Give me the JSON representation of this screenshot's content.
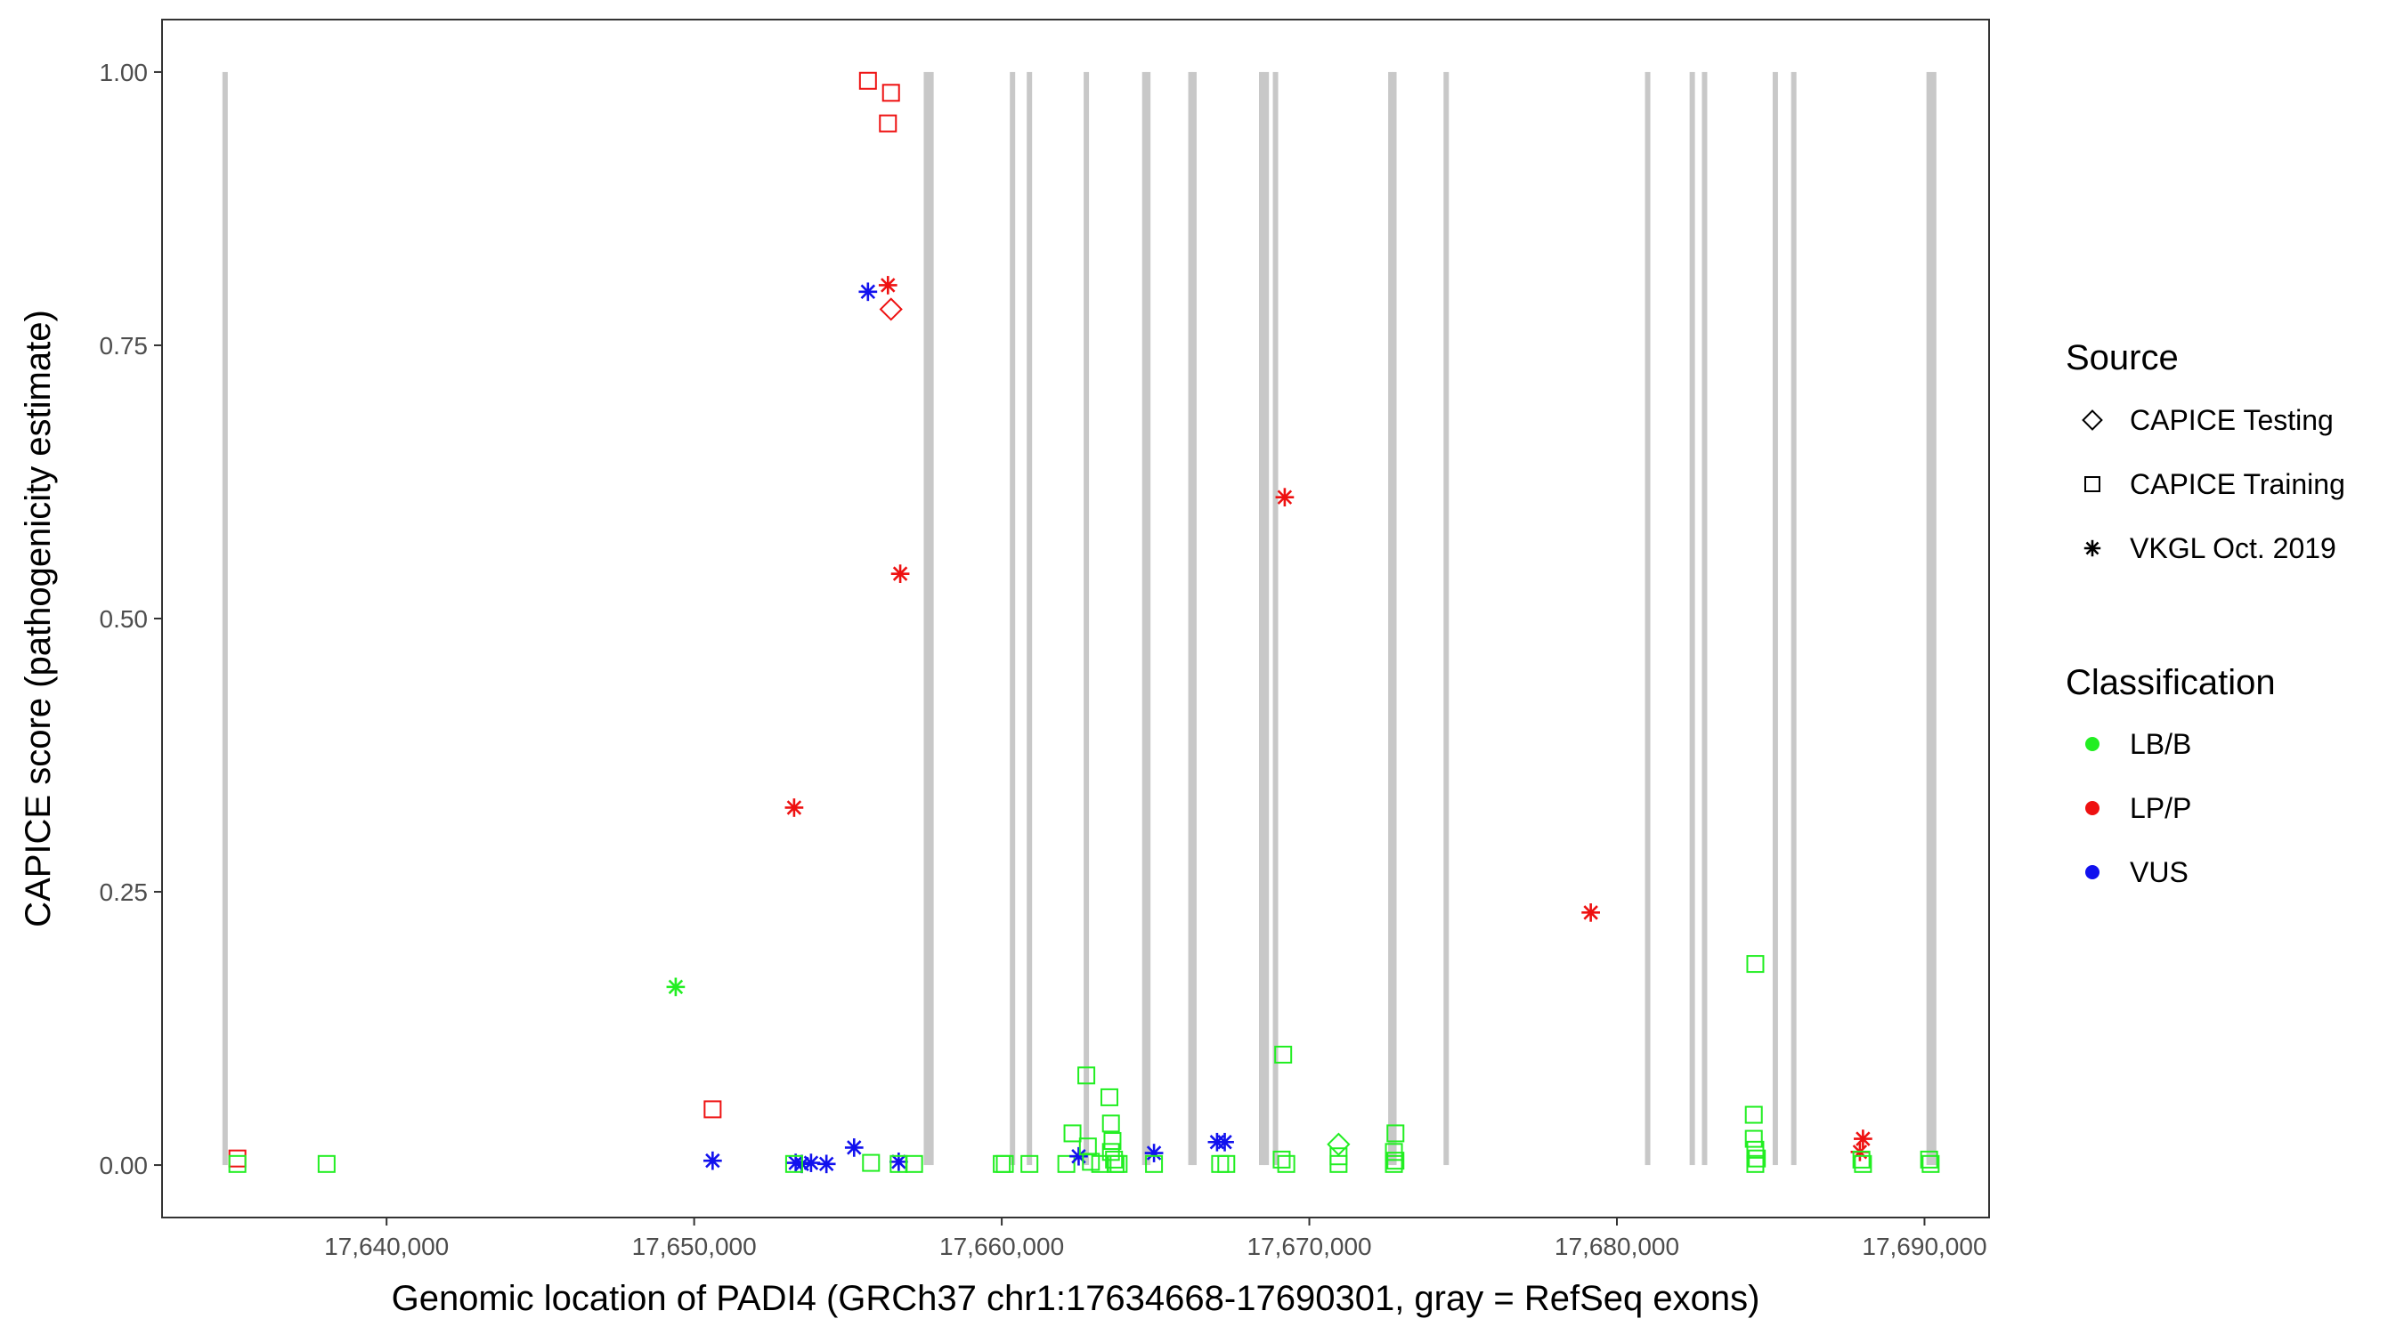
{
  "colors": {
    "exon": "#c8c8c8",
    "LB/B": "#22ee22",
    "LP/P": "#ee1111",
    "VUS": "#1111ee",
    "legend_shape": "#000000"
  },
  "chart_data": {
    "type": "scatter",
    "title": "",
    "xlabel": "Genomic location of PADI4 (GRCh37 chr1:17634668-17690301, gray = RefSeq exons)",
    "ylabel": "CAPICE score (pathogenicity estimate)",
    "xlim": [
      17632700,
      17692100
    ],
    "ylim": [
      -0.048,
      1.048
    ],
    "x_ticks": [
      17640000,
      17650000,
      17660000,
      17670000,
      17680000,
      17690000
    ],
    "x_tick_labels": [
      "17,640,000",
      "17,650,000",
      "17,660,000",
      "17,670,000",
      "17,680,000",
      "17,690,000"
    ],
    "y_ticks": [
      0,
      0.25,
      0.5,
      0.75,
      1.0
    ],
    "y_tick_labels": [
      "0.00",
      "0.25",
      "0.50",
      "0.75",
      "1.00"
    ],
    "grid": false,
    "legend_position": "right",
    "exons": [
      17634750,
      17657550,
      17657700,
      17660350,
      17660900,
      17662750,
      17664650,
      17664750,
      17666150,
      17666250,
      17668450,
      17668600,
      17668900,
      17672650,
      17672750,
      17674450,
      17681000,
      17682450,
      17682850,
      17685150,
      17685750,
      17690150,
      17690300
    ],
    "legend": {
      "source_title": "Source",
      "source_items": [
        {
          "label": "CAPICE Testing",
          "shape": "diamond"
        },
        {
          "label": "CAPICE Training",
          "shape": "square"
        },
        {
          "label": "VKGL Oct. 2019",
          "shape": "asterisk"
        }
      ],
      "class_title": "Classification",
      "class_items": [
        {
          "label": "LB/B",
          "color": "#22ee22"
        },
        {
          "label": "LP/P",
          "color": "#ee1111"
        },
        {
          "label": "VUS",
          "color": "#1111ee"
        }
      ]
    },
    "points": [
      {
        "x": 17635150,
        "y": 0.006,
        "shape": "square",
        "class": "LP/P"
      },
      {
        "x": 17635150,
        "y": 0.001,
        "shape": "square",
        "class": "LB/B"
      },
      {
        "x": 17638050,
        "y": 0.001,
        "shape": "square",
        "class": "LB/B"
      },
      {
        "x": 17649400,
        "y": 0.163,
        "shape": "asterisk",
        "class": "LB/B"
      },
      {
        "x": 17650600,
        "y": 0.051,
        "shape": "square",
        "class": "LP/P"
      },
      {
        "x": 17650600,
        "y": 0.004,
        "shape": "asterisk",
        "class": "VUS"
      },
      {
        "x": 17653250,
        "y": 0.327,
        "shape": "asterisk",
        "class": "LP/P"
      },
      {
        "x": 17653300,
        "y": 0.002,
        "shape": "asterisk",
        "class": "VUS"
      },
      {
        "x": 17653500,
        "y": 0.001,
        "shape": "asterisk",
        "class": "VUS"
      },
      {
        "x": 17653800,
        "y": 0.002,
        "shape": "asterisk",
        "class": "VUS"
      },
      {
        "x": 17653250,
        "y": 0.001,
        "shape": "square",
        "class": "LB/B"
      },
      {
        "x": 17654300,
        "y": 0.001,
        "shape": "asterisk",
        "class": "VUS"
      },
      {
        "x": 17655200,
        "y": 0.016,
        "shape": "asterisk",
        "class": "VUS"
      },
      {
        "x": 17655650,
        "y": 0.992,
        "shape": "square",
        "class": "LP/P"
      },
      {
        "x": 17655650,
        "y": 0.799,
        "shape": "asterisk",
        "class": "VUS"
      },
      {
        "x": 17655750,
        "y": 0.002,
        "shape": "square",
        "class": "LB/B"
      },
      {
        "x": 17656300,
        "y": 0.953,
        "shape": "square",
        "class": "LP/P"
      },
      {
        "x": 17656400,
        "y": 0.981,
        "shape": "square",
        "class": "LP/P"
      },
      {
        "x": 17656300,
        "y": 0.805,
        "shape": "asterisk",
        "class": "LP/P"
      },
      {
        "x": 17656400,
        "y": 0.783,
        "shape": "diamond",
        "class": "LP/P"
      },
      {
        "x": 17656700,
        "y": 0.541,
        "shape": "asterisk",
        "class": "LP/P"
      },
      {
        "x": 17656650,
        "y": 0.003,
        "shape": "asterisk",
        "class": "VUS"
      },
      {
        "x": 17656650,
        "y": 0.001,
        "shape": "square",
        "class": "LB/B"
      },
      {
        "x": 17657150,
        "y": 0.001,
        "shape": "square",
        "class": "LB/B"
      },
      {
        "x": 17660000,
        "y": 0.001,
        "shape": "square",
        "class": "LB/B"
      },
      {
        "x": 17660100,
        "y": 0.001,
        "shape": "square",
        "class": "LB/B"
      },
      {
        "x": 17660900,
        "y": 0.001,
        "shape": "square",
        "class": "LB/B"
      },
      {
        "x": 17662100,
        "y": 0.001,
        "shape": "square",
        "class": "LB/B"
      },
      {
        "x": 17662300,
        "y": 0.029,
        "shape": "square",
        "class": "LB/B"
      },
      {
        "x": 17662500,
        "y": 0.008,
        "shape": "asterisk",
        "class": "VUS"
      },
      {
        "x": 17662750,
        "y": 0.082,
        "shape": "square",
        "class": "LB/B"
      },
      {
        "x": 17662800,
        "y": 0.017,
        "shape": "square",
        "class": "LB/B"
      },
      {
        "x": 17662900,
        "y": 0.003,
        "shape": "square",
        "class": "LB/B"
      },
      {
        "x": 17663200,
        "y": 0.001,
        "shape": "square",
        "class": "LB/B"
      },
      {
        "x": 17663500,
        "y": 0.062,
        "shape": "square",
        "class": "LB/B"
      },
      {
        "x": 17663550,
        "y": 0.038,
        "shape": "square",
        "class": "LB/B"
      },
      {
        "x": 17663600,
        "y": 0.022,
        "shape": "square",
        "class": "LB/B"
      },
      {
        "x": 17663550,
        "y": 0.012,
        "shape": "square",
        "class": "LB/B"
      },
      {
        "x": 17663650,
        "y": 0.005,
        "shape": "square",
        "class": "LB/B"
      },
      {
        "x": 17663700,
        "y": 0.001,
        "shape": "square",
        "class": "LB/B"
      },
      {
        "x": 17663800,
        "y": 0.001,
        "shape": "square",
        "class": "LB/B"
      },
      {
        "x": 17664950,
        "y": 0.011,
        "shape": "asterisk",
        "class": "VUS"
      },
      {
        "x": 17664950,
        "y": 0.001,
        "shape": "square",
        "class": "LB/B"
      },
      {
        "x": 17667000,
        "y": 0.021,
        "shape": "asterisk",
        "class": "VUS"
      },
      {
        "x": 17667250,
        "y": 0.021,
        "shape": "asterisk",
        "class": "VUS"
      },
      {
        "x": 17667100,
        "y": 0.001,
        "shape": "square",
        "class": "LB/B"
      },
      {
        "x": 17667300,
        "y": 0.001,
        "shape": "square",
        "class": "LB/B"
      },
      {
        "x": 17669200,
        "y": 0.611,
        "shape": "asterisk",
        "class": "LP/P"
      },
      {
        "x": 17669150,
        "y": 0.101,
        "shape": "square",
        "class": "LB/B"
      },
      {
        "x": 17669100,
        "y": 0.005,
        "shape": "square",
        "class": "LB/B"
      },
      {
        "x": 17669250,
        "y": 0.001,
        "shape": "square",
        "class": "LB/B"
      },
      {
        "x": 17670950,
        "y": 0.019,
        "shape": "diamond",
        "class": "LB/B"
      },
      {
        "x": 17670950,
        "y": 0.008,
        "shape": "square",
        "class": "LB/B"
      },
      {
        "x": 17670950,
        "y": 0.001,
        "shape": "square",
        "class": "LB/B"
      },
      {
        "x": 17672800,
        "y": 0.029,
        "shape": "square",
        "class": "LB/B"
      },
      {
        "x": 17672750,
        "y": 0.012,
        "shape": "square",
        "class": "LB/B"
      },
      {
        "x": 17672800,
        "y": 0.004,
        "shape": "square",
        "class": "LB/B"
      },
      {
        "x": 17672750,
        "y": 0.001,
        "shape": "square",
        "class": "LB/B"
      },
      {
        "x": 17679150,
        "y": 0.231,
        "shape": "asterisk",
        "class": "LP/P"
      },
      {
        "x": 17684500,
        "y": 0.184,
        "shape": "square",
        "class": "LB/B"
      },
      {
        "x": 17684450,
        "y": 0.046,
        "shape": "square",
        "class": "LB/B"
      },
      {
        "x": 17684450,
        "y": 0.024,
        "shape": "square",
        "class": "LB/B"
      },
      {
        "x": 17684500,
        "y": 0.014,
        "shape": "square",
        "class": "LB/B"
      },
      {
        "x": 17684550,
        "y": 0.006,
        "shape": "square",
        "class": "LB/B"
      },
      {
        "x": 17684500,
        "y": 0.001,
        "shape": "square",
        "class": "LB/B"
      },
      {
        "x": 17688000,
        "y": 0.024,
        "shape": "asterisk",
        "class": "LP/P"
      },
      {
        "x": 17687900,
        "y": 0.012,
        "shape": "asterisk",
        "class": "LP/P"
      },
      {
        "x": 17687950,
        "y": 0.005,
        "shape": "square",
        "class": "LB/B"
      },
      {
        "x": 17688000,
        "y": 0.001,
        "shape": "square",
        "class": "LB/B"
      },
      {
        "x": 17690150,
        "y": 0.005,
        "shape": "square",
        "class": "LB/B"
      },
      {
        "x": 17690200,
        "y": 0.001,
        "shape": "square",
        "class": "LB/B"
      }
    ]
  }
}
